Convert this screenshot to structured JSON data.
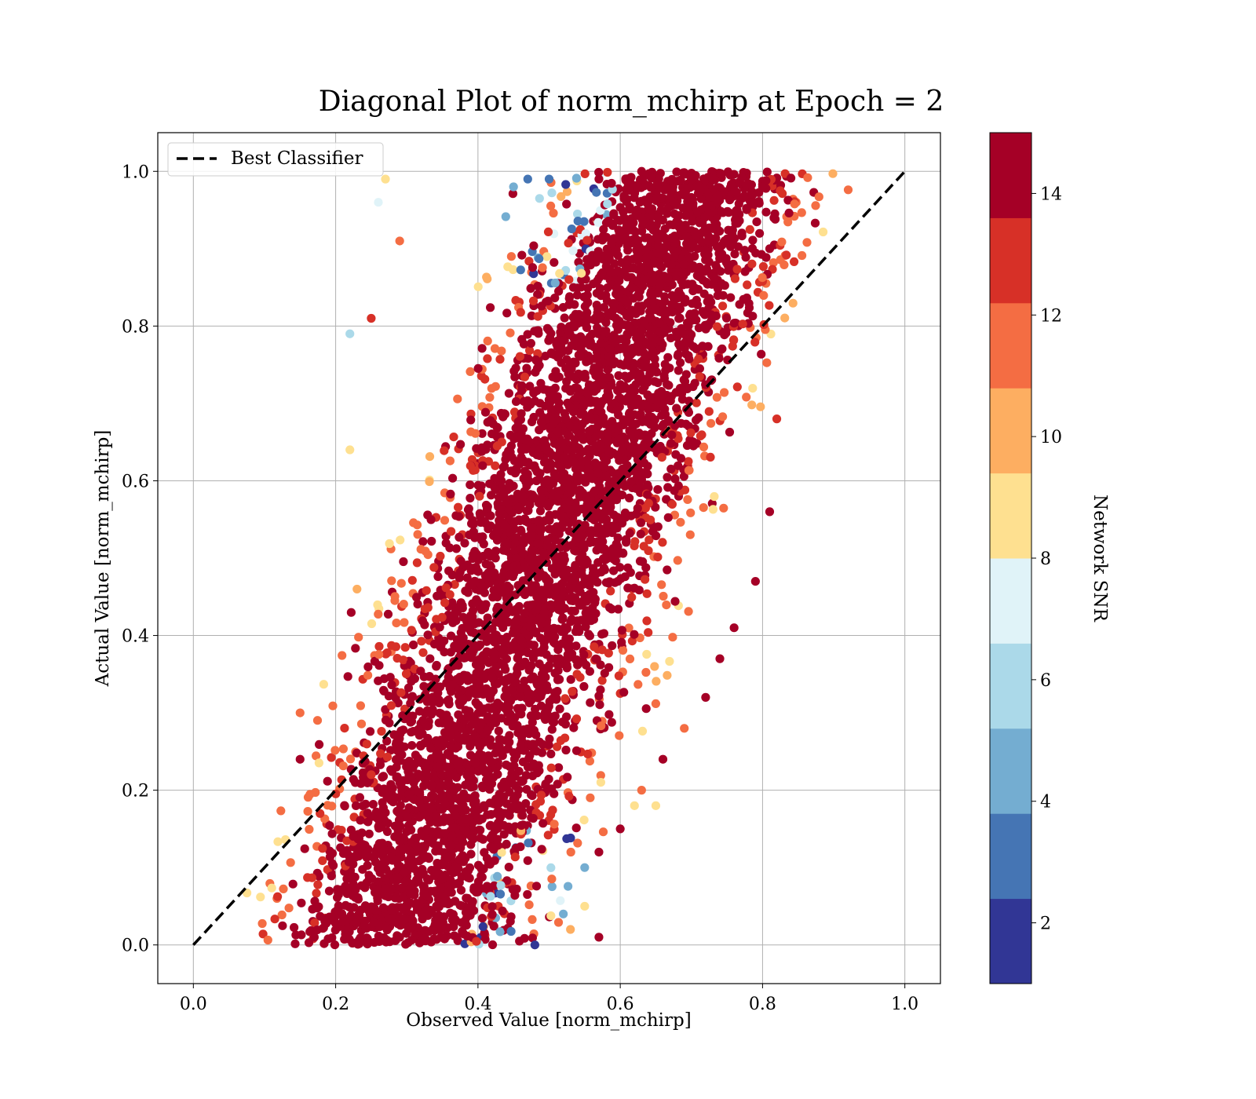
{
  "colors": {
    "diagonal": "#000000",
    "grid": "#b0b0b0",
    "colormap": [
      "#313695",
      "#4575b4",
      "#74add1",
      "#abd9e9",
      "#e0f3f8",
      "#ffffbf",
      "#fee090",
      "#fdae61",
      "#f46d43",
      "#d73027",
      "#a50026"
    ]
  },
  "chart_data": {
    "type": "scatter",
    "title": "Diagonal Plot of norm_mchirp at Epoch = 2",
    "xlabel": "Observed Value [norm_mchirp]",
    "ylabel": "Actual Value [norm_mchirp]",
    "xlim": [
      -0.05,
      1.05
    ],
    "ylim": [
      -0.05,
      1.05
    ],
    "x_ticks": [
      "0.0",
      "0.2",
      "0.4",
      "0.6",
      "0.8",
      "1.0"
    ],
    "y_ticks": [
      "0.0",
      "0.2",
      "0.4",
      "0.6",
      "0.8",
      "1.0"
    ],
    "grid": true,
    "legend": {
      "placement": "upper-left",
      "entries": [
        "Best Classifier"
      ]
    },
    "series": [
      {
        "name": "Best Classifier",
        "style": "dashed",
        "x": [
          0.0,
          1.0
        ],
        "y": [
          0.0,
          1.0
        ]
      }
    ],
    "point_cloud": {
      "color_by": "Network SNR",
      "points": [
        [
          0.17,
          0.01,
          14.5
        ],
        [
          0.21,
          0.03,
          14.2
        ],
        [
          0.29,
          0.01,
          14.6
        ],
        [
          0.37,
          0.01,
          13.8
        ],
        [
          0.48,
          0.0,
          2.0
        ],
        [
          0.53,
          0.02,
          10.0
        ],
        [
          0.57,
          0.01,
          14.5
        ],
        [
          0.55,
          0.05,
          9.0
        ],
        [
          0.52,
          0.04,
          4.0
        ],
        [
          0.55,
          0.1,
          4.5
        ],
        [
          0.62,
          0.18,
          8.0
        ],
        [
          0.65,
          0.18,
          8.5
        ],
        [
          0.15,
          0.24,
          14.0
        ],
        [
          0.15,
          0.3,
          11.0
        ],
        [
          0.23,
          0.46,
          9.5
        ],
        [
          0.27,
          0.99,
          8.2
        ],
        [
          0.22,
          0.79,
          6.2
        ],
        [
          0.26,
          0.96,
          6.8
        ],
        [
          0.29,
          0.91,
          12.0
        ],
        [
          0.5,
          0.99,
          3.0
        ],
        [
          0.47,
          0.99,
          2.5
        ],
        [
          0.45,
          0.98,
          5.0
        ],
        [
          0.57,
          0.99,
          14.5
        ],
        [
          0.63,
          1.0,
          14.5
        ],
        [
          0.73,
          0.99,
          14.5
        ],
        [
          0.8,
          0.98,
          14.5
        ],
        [
          0.81,
          0.9,
          14.5
        ],
        [
          0.82,
          0.68,
          13.0
        ],
        [
          0.81,
          0.56,
          14.5
        ],
        [
          0.79,
          0.47,
          14.5
        ],
        [
          0.76,
          0.41,
          14.5
        ],
        [
          0.74,
          0.37,
          14.5
        ],
        [
          0.72,
          0.32,
          14.5
        ],
        [
          0.69,
          0.28,
          11.0
        ],
        [
          0.66,
          0.24,
          14.5
        ],
        [
          0.63,
          0.2,
          12.0
        ],
        [
          0.6,
          0.15,
          14.0
        ],
        [
          0.57,
          0.12,
          14.5
        ],
        [
          0.25,
          0.81,
          12.5
        ],
        [
          0.22,
          0.64,
          8.2
        ]
      ]
    },
    "colorbar": {
      "label": "Network SNR",
      "range": [
        1,
        15
      ],
      "ticks": [
        "2",
        "4",
        "6",
        "8",
        "10",
        "12",
        "14"
      ],
      "bands": 10
    }
  }
}
